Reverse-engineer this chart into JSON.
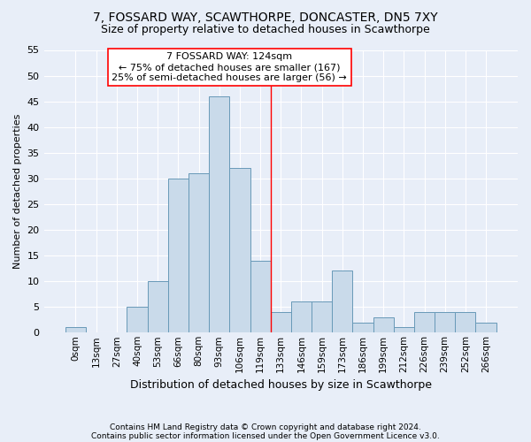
{
  "title": "7, FOSSARD WAY, SCAWTHORPE, DONCASTER, DN5 7XY",
  "subtitle": "Size of property relative to detached houses in Scawthorpe",
  "xlabel": "Distribution of detached houses by size in Scawthorpe",
  "ylabel": "Number of detached properties",
  "categories": [
    "0sqm",
    "13sqm",
    "27sqm",
    "40sqm",
    "53sqm",
    "66sqm",
    "80sqm",
    "93sqm",
    "106sqm",
    "119sqm",
    "133sqm",
    "146sqm",
    "159sqm",
    "173sqm",
    "186sqm",
    "199sqm",
    "212sqm",
    "226sqm",
    "239sqm",
    "252sqm",
    "266sqm"
  ],
  "values": [
    1,
    0,
    0,
    5,
    10,
    30,
    31,
    46,
    32,
    14,
    4,
    6,
    6,
    12,
    2,
    3,
    1,
    4,
    4,
    4,
    2
  ],
  "bar_color": "#c9daea",
  "bar_edge_color": "#6899b8",
  "bar_edge_width": 0.7,
  "ylim": [
    0,
    55
  ],
  "yticks": [
    0,
    5,
    10,
    15,
    20,
    25,
    30,
    35,
    40,
    45,
    50,
    55
  ],
  "red_line_x": 9.5,
  "annotation_title": "7 FOSSARD WAY: 124sqm",
  "annotation_line1": "← 75% of detached houses are smaller (167)",
  "annotation_line2": "25% of semi-detached houses are larger (56) →",
  "footer1": "Contains HM Land Registry data © Crown copyright and database right 2024.",
  "footer2": "Contains public sector information licensed under the Open Government Licence v3.0.",
  "bg_color": "#e8eef8",
  "plot_bg_color": "#e8eef8",
  "grid_color": "#ffffff",
  "title_fontsize": 10,
  "subtitle_fontsize": 9,
  "annotation_fontsize": 8,
  "xlabel_fontsize": 9,
  "ylabel_fontsize": 8
}
